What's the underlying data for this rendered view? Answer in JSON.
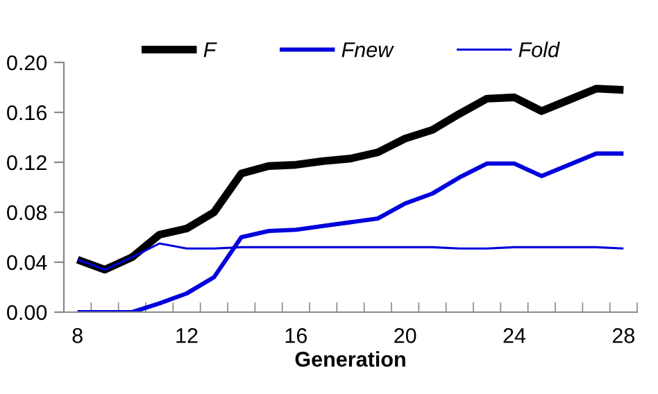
{
  "chart_data": {
    "type": "line",
    "xlabel": "Generation",
    "x": [
      8,
      9,
      10,
      11,
      12,
      13,
      14,
      15,
      16,
      17,
      18,
      19,
      20,
      21,
      22,
      23,
      24,
      25,
      26,
      27,
      28
    ],
    "series": [
      {
        "name": "F",
        "color": "#000000",
        "values": [
          0.042,
          0.034,
          0.044,
          0.062,
          0.067,
          0.08,
          0.111,
          0.117,
          0.118,
          0.121,
          0.123,
          0.128,
          0.139,
          0.146,
          0.159,
          0.171,
          0.172,
          0.161,
          0.17,
          0.179,
          0.178
        ]
      },
      {
        "name": "Fnew",
        "color": "#0000dd",
        "values": [
          0,
          0,
          0,
          0.007,
          0.015,
          0.028,
          0.06,
          0.065,
          0.066,
          0.069,
          0.072,
          0.075,
          0.087,
          0.095,
          0.108,
          0.119,
          0.119,
          0.109,
          0.118,
          0.127,
          0.127
        ]
      },
      {
        "name": "Fold",
        "color": "#0000dd",
        "values": [
          0.042,
          0.034,
          0.044,
          0.055,
          0.051,
          0.051,
          0.052,
          0.052,
          0.052,
          0.052,
          0.052,
          0.052,
          0.052,
          0.052,
          0.051,
          0.051,
          0.052,
          0.052,
          0.052,
          0.052,
          0.051
        ]
      }
    ],
    "xlim": [
      7.5,
      28.5
    ],
    "xticks": [
      8,
      12,
      16,
      20,
      24,
      28,
      {
        "value": 7.5,
        "label": null
      },
      {
        "value": 8.5,
        "label": null
      },
      {
        "value": 9.5,
        "label": null
      },
      {
        "value": 10.5,
        "label": null
      },
      {
        "value": 11.5,
        "label": null
      },
      {
        "value": 12.5,
        "label": null
      },
      {
        "value": 13.5,
        "label": null
      },
      {
        "value": 14.5,
        "label": null
      },
      {
        "value": 15.5,
        "label": null
      },
      {
        "value": 16.5,
        "label": null
      },
      {
        "value": 17.5,
        "label": null
      },
      {
        "value": 18.5,
        "label": null
      },
      {
        "value": 19.5,
        "label": null
      },
      {
        "value": 20.5,
        "label": null
      },
      {
        "value": 21.5,
        "label": null
      },
      {
        "value": 22.5,
        "label": null
      },
      {
        "value": 23.5,
        "label": null
      },
      {
        "value": 24.5,
        "label": null
      },
      {
        "value": 25.5,
        "label": null
      },
      {
        "value": 26.5,
        "label": null
      },
      {
        "value": 27.5,
        "label": null
      },
      {
        "value": 28.5,
        "label": null
      }
    ],
    "ylim": [
      0,
      0.2
    ],
    "yticks": [
      {
        "value": 0,
        "label": "0.00"
      },
      {
        "value": 0.04,
        "label": "0.04"
      },
      {
        "value": 0.08,
        "label": "0.08"
      },
      {
        "value": 0.12,
        "label": "0.12"
      },
      {
        "value": 0.16,
        "label": "0.16"
      },
      {
        "value": 0.2,
        "label": "0.20"
      }
    ],
    "grid": false,
    "legend": "top",
    "marker": "none",
    "line_style": "solid"
  }
}
